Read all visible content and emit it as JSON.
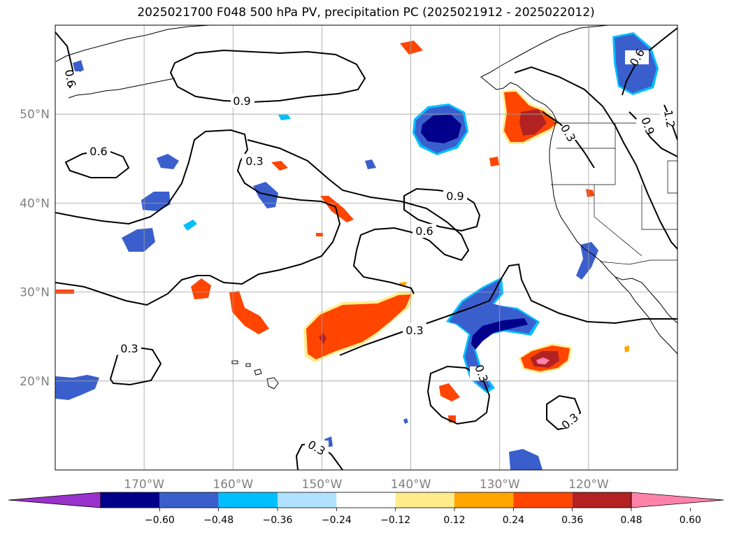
{
  "title": "2025021700 F048 500 hPa PV, precipitation PC (2025021912 - 2025022012)",
  "map": {
    "lon_range": [
      -180,
      -110
    ],
    "lat_range": [
      10,
      60
    ],
    "lon_ticks": [
      {
        "value": -170,
        "label": "170°W"
      },
      {
        "value": -160,
        "label": "160°W"
      },
      {
        "value": -150,
        "label": "150°W"
      },
      {
        "value": -140,
        "label": "140°W"
      },
      {
        "value": -130,
        "label": "130°W"
      },
      {
        "value": -120,
        "label": "120°W"
      }
    ],
    "lat_ticks": [
      {
        "value": 20,
        "label": "20°N"
      },
      {
        "value": 30,
        "label": "30°N"
      },
      {
        "value": 40,
        "label": "40°N"
      },
      {
        "value": 50,
        "label": "50°N"
      }
    ],
    "grid": true
  },
  "colorbar": {
    "extend": "both",
    "colors": [
      "#9932cc",
      "#00008b",
      "#3a5fcd",
      "#00bfff",
      "#b0e2ff",
      "#ffffff",
      "#ffec8b",
      "#ffa500",
      "#ff4500",
      "#b22222",
      "#ff82ab"
    ],
    "ticks": [
      "−0.60",
      "−0.48",
      "−0.36",
      "−0.24",
      "−0.12",
      "0.12",
      "0.24",
      "0.36",
      "0.48",
      "0.60"
    ]
  },
  "contour_labels": [
    "0.9",
    "0.6",
    "0.3",
    "0.9",
    "0.6",
    "0.3",
    "0.3",
    "0.3",
    "0.3",
    "0.3",
    "0.6",
    "0.9",
    "1.2",
    "0.3",
    "0.6"
  ],
  "precip_features": [
    {
      "lon": -149.5,
      "lat": 25.5,
      "sign": "positive",
      "peak": 0.48
    },
    {
      "lon": -144.5,
      "lat": 28.5,
      "sign": "positive",
      "peak": 0.36
    },
    {
      "lon": -124.5,
      "lat": 22.3,
      "sign": "positive",
      "peak": 0.6
    },
    {
      "lon": -126.5,
      "lat": 47.5,
      "sign": "positive",
      "peak": 0.48
    },
    {
      "lon": -142.5,
      "lat": 48.5,
      "sign": "negative",
      "peak": -0.6
    },
    {
      "lon": -128.5,
      "lat": 26.5,
      "sign": "negative",
      "peak": -0.6
    },
    {
      "lon": -119.5,
      "lat": 54.0,
      "sign": "negative",
      "peak": -0.36
    },
    {
      "lon": -179.0,
      "lat": 19.0,
      "sign": "negative",
      "peak": -0.36
    }
  ]
}
